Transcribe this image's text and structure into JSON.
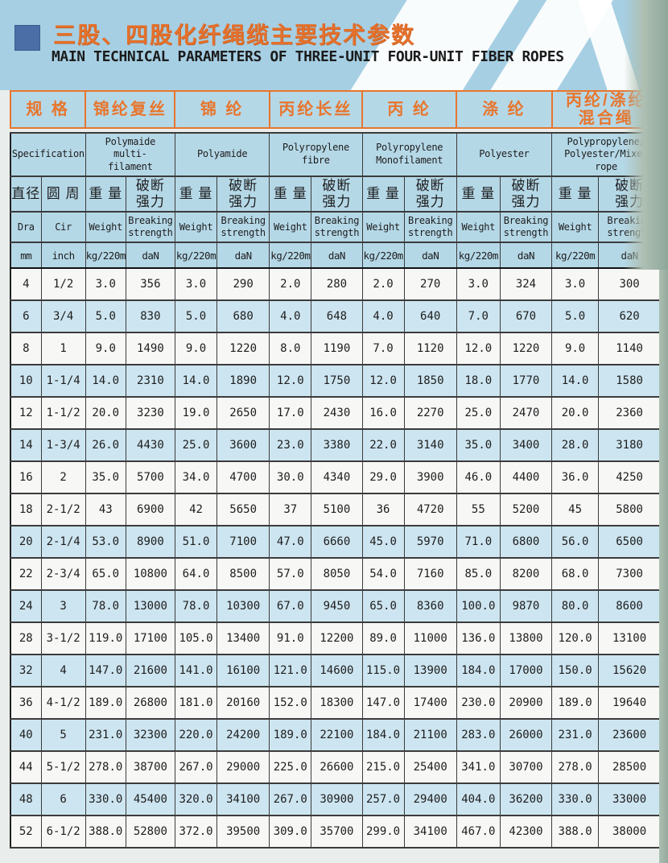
{
  "header": {
    "title_zh": "三股、四股化纤绳缆主要技术参数",
    "title_en": "MAIN TECHNICAL PARAMETERS OF THREE-UNIT FOUR-UNIT FIBER ROPES"
  },
  "table": {
    "col_groups": [
      {
        "zh": "规 格",
        "en": "Specification"
      },
      {
        "zh": "锦纶复丝",
        "en": "Polymaide multi-\nfilament"
      },
      {
        "zh": "锦 纶",
        "en": "Polyamide"
      },
      {
        "zh": "丙纶长丝",
        "en": "Polyropylene\nfibre"
      },
      {
        "zh": "丙 纶",
        "en": "Polyropylene\nMonofilament"
      },
      {
        "zh": "涤 纶",
        "en": "Polyester"
      },
      {
        "zh": "丙纶/涤纶\n混合绳",
        "en": "Polypropylene/\nPolyester/Mixed\nrope"
      }
    ],
    "sub": {
      "dia": {
        "zh": "直径",
        "en": "Dra",
        "unit": "mm"
      },
      "cir": {
        "zh": "圆 周",
        "en": "Cir",
        "unit": "inch"
      },
      "weight": {
        "zh": "重 量",
        "en": "Weight",
        "unit": "kg/220m"
      },
      "breaking": {
        "zh": "破断\n强力",
        "en": "Breaking\nstrength",
        "unit": "daN"
      }
    },
    "rows": [
      [
        "4",
        "1/2",
        "3.0",
        "356",
        "3.0",
        "290",
        "2.0",
        "280",
        "2.0",
        "270",
        "3.0",
        "324",
        "3.0",
        "300"
      ],
      [
        "6",
        "3/4",
        "5.0",
        "830",
        "5.0",
        "680",
        "4.0",
        "648",
        "4.0",
        "640",
        "7.0",
        "670",
        "5.0",
        "620"
      ],
      [
        "8",
        "1",
        "9.0",
        "1490",
        "9.0",
        "1220",
        "8.0",
        "1190",
        "7.0",
        "1120",
        "12.0",
        "1220",
        "9.0",
        "1140"
      ],
      [
        "10",
        "1-1/4",
        "14.0",
        "2310",
        "14.0",
        "1890",
        "12.0",
        "1750",
        "12.0",
        "1850",
        "18.0",
        "1770",
        "14.0",
        "1580"
      ],
      [
        "12",
        "1-1/2",
        "20.0",
        "3230",
        "19.0",
        "2650",
        "17.0",
        "2430",
        "16.0",
        "2270",
        "25.0",
        "2470",
        "20.0",
        "2360"
      ],
      [
        "14",
        "1-3/4",
        "26.0",
        "4430",
        "25.0",
        "3600",
        "23.0",
        "3380",
        "22.0",
        "3140",
        "35.0",
        "3400",
        "28.0",
        "3180"
      ],
      [
        "16",
        "2",
        "35.0",
        "5700",
        "34.0",
        "4700",
        "30.0",
        "4340",
        "29.0",
        "3900",
        "46.0",
        "4400",
        "36.0",
        "4250"
      ],
      [
        "18",
        "2-1/2",
        "43",
        "6900",
        "42",
        "5650",
        "37",
        "5100",
        "36",
        "4720",
        "55",
        "5200",
        "45",
        "5800"
      ],
      [
        "20",
        "2-1/4",
        "53.0",
        "8900",
        "51.0",
        "7100",
        "47.0",
        "6660",
        "45.0",
        "5970",
        "71.0",
        "6800",
        "56.0",
        "6500"
      ],
      [
        "22",
        "2-3/4",
        "65.0",
        "10800",
        "64.0",
        "8500",
        "57.0",
        "8050",
        "54.0",
        "7160",
        "85.0",
        "8200",
        "68.0",
        "7300"
      ],
      [
        "24",
        "3",
        "78.0",
        "13000",
        "78.0",
        "10300",
        "67.0",
        "9450",
        "65.0",
        "8360",
        "100.0",
        "9870",
        "80.0",
        "8600"
      ],
      [
        "28",
        "3-1/2",
        "119.0",
        "17100",
        "105.0",
        "13400",
        "91.0",
        "12200",
        "89.0",
        "11000",
        "136.0",
        "13800",
        "120.0",
        "13100"
      ],
      [
        "32",
        "4",
        "147.0",
        "21600",
        "141.0",
        "16100",
        "121.0",
        "14600",
        "115.0",
        "13900",
        "184.0",
        "17000",
        "150.0",
        "15620"
      ],
      [
        "36",
        "4-1/2",
        "189.0",
        "26800",
        "181.0",
        "20160",
        "152.0",
        "18300",
        "147.0",
        "17400",
        "230.0",
        "20900",
        "189.0",
        "19640"
      ],
      [
        "40",
        "5",
        "231.0",
        "32300",
        "220.0",
        "24200",
        "189.0",
        "22100",
        "184.0",
        "21100",
        "283.0",
        "26000",
        "231.0",
        "23600"
      ],
      [
        "44",
        "5-1/2",
        "278.0",
        "38700",
        "267.0",
        "29000",
        "225.0",
        "26600",
        "215.0",
        "25400",
        "341.0",
        "30700",
        "278.0",
        "28500"
      ],
      [
        "48",
        "6",
        "330.0",
        "45400",
        "320.0",
        "34100",
        "267.0",
        "30900",
        "257.0",
        "29400",
        "404.0",
        "36200",
        "330.0",
        "33000"
      ],
      [
        "52",
        "6-1/2",
        "388.0",
        "52800",
        "372.0",
        "39500",
        "309.0",
        "35700",
        "299.0",
        "34100",
        "467.0",
        "42300",
        "388.0",
        "38000"
      ]
    ],
    "shaded_rows": [
      1,
      3,
      5,
      8,
      10,
      12,
      14,
      16
    ]
  },
  "colors": {
    "accent_orange": "#e8752c",
    "bullet_blue": "#4b6ea6",
    "top_band_blue": "#a6cfe3",
    "header_cell_blue": "#b5d8e7",
    "row_shaded_blue": "#cde5f0",
    "row_white": "#f7f8f6",
    "page_edge_green": "#9fb7ab"
  }
}
